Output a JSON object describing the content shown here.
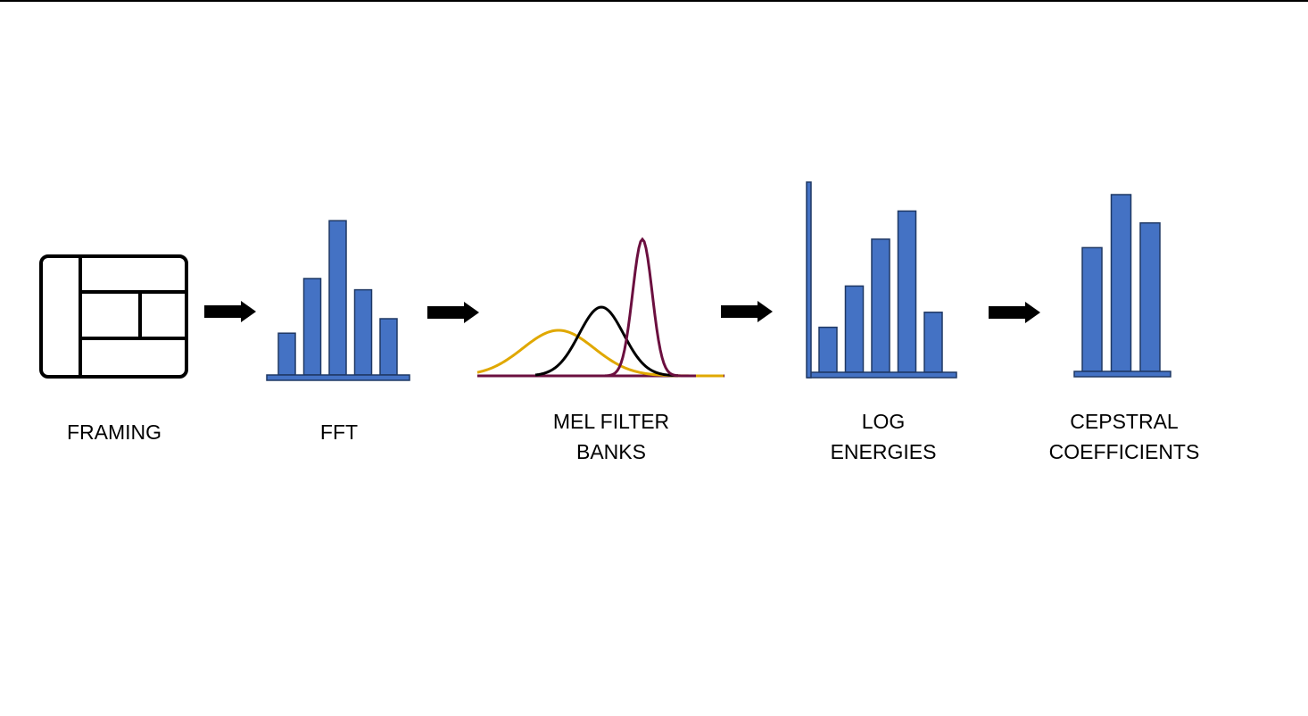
{
  "colors": {
    "bar_fill": "#4472c4",
    "bar_stroke": "#1f3864",
    "arrow": "#000000",
    "curve_yellow": "#e0a800",
    "curve_black": "#000000",
    "curve_maroon": "#6b0f3f",
    "framing_icon": "#000000"
  },
  "icons": {
    "framing": "frame-grid-icon",
    "arrow": "right-arrow-icon"
  },
  "stages": [
    {
      "id": "framing",
      "label": "FRAMING"
    },
    {
      "id": "fft",
      "label": "FFT",
      "bars": [
        0.26,
        0.6,
        0.96,
        0.53,
        0.35
      ]
    },
    {
      "id": "mel",
      "label": "MEL FILTER\nBANKS"
    },
    {
      "id": "log",
      "label": "LOG\nENERGIES",
      "bars": [
        0.24,
        0.46,
        0.71,
        0.86,
        0.32
      ]
    },
    {
      "id": "cepstral",
      "label": "CEPSTRAL\nCOEFFICIENTS",
      "bars": [
        0.7,
        1.0,
        0.84
      ]
    }
  ]
}
